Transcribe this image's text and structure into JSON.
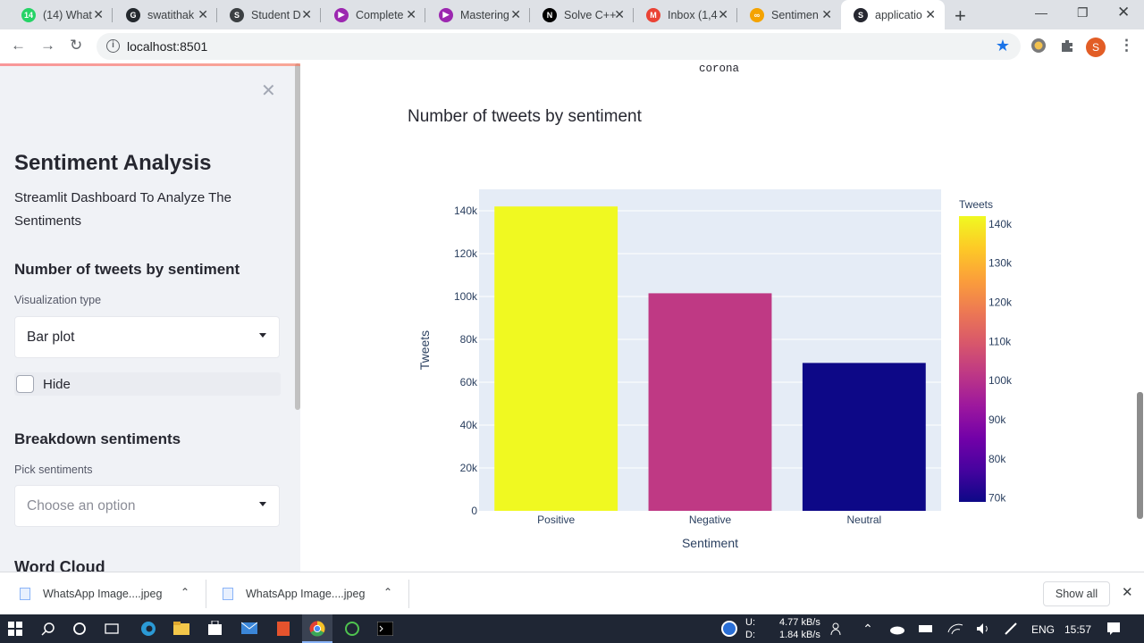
{
  "browser": {
    "tabs": [
      {
        "label": "(14) What",
        "color": "#25d366",
        "glyph": "14"
      },
      {
        "label": "swatithak",
        "color": "#24292e",
        "glyph": "G"
      },
      {
        "label": "Student D",
        "color": "#3c4043",
        "glyph": "S"
      },
      {
        "label": "Complete",
        "color": "#9c27b0",
        "glyph": "▶"
      },
      {
        "label": "Mastering",
        "color": "#9c27b0",
        "glyph": "▶"
      },
      {
        "label": "Solve C++",
        "color": "#000000",
        "glyph": "N"
      },
      {
        "label": "Inbox (1,4",
        "color": "#ea4335",
        "glyph": "M"
      },
      {
        "label": "Sentimen",
        "color": "#f4a300",
        "glyph": "∞"
      },
      {
        "label": "applicatio",
        "color": "#262730",
        "glyph": "S"
      }
    ],
    "active_tab": 8,
    "url": "localhost:8501",
    "profile_initial": "S"
  },
  "sidebar": {
    "title": "Sentiment Analysis",
    "subtitle": "Streamlit Dashboard To Analyze The Sentiments",
    "section1_heading": "Number of tweets by sentiment",
    "viz_label": "Visualization type",
    "viz_value": "Bar plot",
    "hide_label": "Hide",
    "section2_heading": "Breakdown sentiments",
    "pick_label": "Pick sentiments",
    "pick_placeholder": "Choose an option",
    "section3_heading": "Word Cloud"
  },
  "main": {
    "corona_text": "corona",
    "heading": "Number of tweets by sentiment"
  },
  "chart_data": {
    "type": "bar",
    "categories": [
      "Positive",
      "Negative",
      "Neutral"
    ],
    "values": [
      142000,
      101500,
      69000
    ],
    "xlabel": "Sentiment",
    "ylabel": "Tweets",
    "ylim": [
      0,
      150000
    ],
    "yticks": [
      0,
      20000,
      40000,
      60000,
      80000,
      100000,
      120000,
      140000
    ],
    "ytick_labels": [
      "0",
      "20k",
      "40k",
      "60k",
      "80k",
      "100k",
      "120k",
      "140k"
    ],
    "colorbar": {
      "title": "Tweets",
      "colorscale": "plasma",
      "range": [
        69000,
        142000
      ],
      "ticks": [
        70000,
        80000,
        90000,
        100000,
        110000,
        120000,
        130000,
        140000
      ],
      "tick_labels": [
        "70k",
        "80k",
        "90k",
        "100k",
        "110k",
        "120k",
        "130k",
        "140k"
      ]
    },
    "bar_colors": [
      "#f0f921",
      "#bf3984",
      "#0d0887"
    ],
    "grid": true,
    "plot_bg": "#e5ecf6"
  },
  "downloads": {
    "items": [
      "WhatsApp Image....jpeg",
      "WhatsApp Image....jpeg"
    ],
    "show_all": "Show all"
  },
  "taskbar": {
    "upload_label": "U:",
    "download_label": "D:",
    "upload_speed": "4.77 kB/s",
    "download_speed": "1.84 kB/s",
    "language": "ENG",
    "time": "15:57"
  }
}
